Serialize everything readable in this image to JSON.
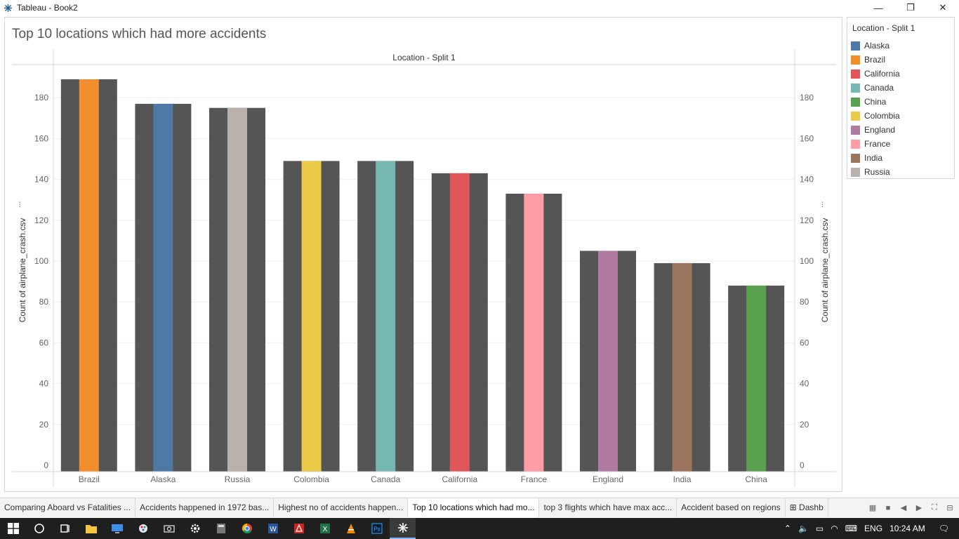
{
  "window": {
    "title": "Tableau - Book2",
    "minimize_glyph": "—",
    "restore_glyph": "❐",
    "close_glyph": "✕"
  },
  "sheet": {
    "title": "Top 10 locations which had more accidents"
  },
  "legend": {
    "title": "Location - Split 1",
    "items": [
      {
        "label": "Alaska",
        "color": "#4e79a7"
      },
      {
        "label": "Brazil",
        "color": "#f28e2b"
      },
      {
        "label": "California",
        "color": "#e15759"
      },
      {
        "label": "Canada",
        "color": "#76b7b2"
      },
      {
        "label": "China",
        "color": "#59a14f"
      },
      {
        "label": "Colombia",
        "color": "#edc948"
      },
      {
        "label": "England",
        "color": "#b07aa1"
      },
      {
        "label": "France",
        "color": "#ff9da7"
      },
      {
        "label": "India",
        "color": "#9c755f"
      },
      {
        "label": "Russia",
        "color": "#bab0ac"
      }
    ]
  },
  "chart_data": {
    "type": "bar",
    "title": "Top 10 locations which had more accidents",
    "header_label": "Location - Split 1",
    "ylabel": "Count of airplane_crash.csv",
    "ylabel_right": "Count of airplane_crash.csv",
    "ylim": [
      0,
      190
    ],
    "yticks": [
      "0",
      "20",
      "40",
      "60",
      "80",
      "100",
      "120",
      "140",
      "160",
      "180"
    ],
    "ytick_values": [
      0,
      20,
      40,
      60,
      80,
      100,
      120,
      140,
      160,
      180
    ],
    "categories": [
      "Brazil",
      "Alaska",
      "Russia",
      "Colombia",
      "Canada",
      "California",
      "France",
      "England",
      "India",
      "China"
    ],
    "values": [
      189,
      177,
      175,
      149,
      149,
      143,
      133,
      105,
      99,
      88
    ],
    "colors": [
      "#f28e2b",
      "#4e79a7",
      "#bab0ac",
      "#edc948",
      "#76b7b2",
      "#e15759",
      "#ff9da7",
      "#b07aa1",
      "#9c755f",
      "#59a14f"
    ],
    "background_bar_color": "#555555",
    "grid": true,
    "legend_position": "right"
  },
  "tabs": [
    {
      "label": "Comparing Aboard vs Fatalities ...",
      "active": false
    },
    {
      "label": "Accidents happened in 1972 bas...",
      "active": false
    },
    {
      "label": "Highest no of accidents happen...",
      "active": false
    },
    {
      "label": "Top 10 locations which had mo...",
      "active": true
    },
    {
      "label": "top 3 flights which have max acc...",
      "active": false
    },
    {
      "label": "Accident based on regions",
      "active": false
    },
    {
      "label": "⊞ Dashb",
      "active": false
    }
  ],
  "taskbar": {
    "language": "ENG",
    "time": "10:24 AM"
  }
}
